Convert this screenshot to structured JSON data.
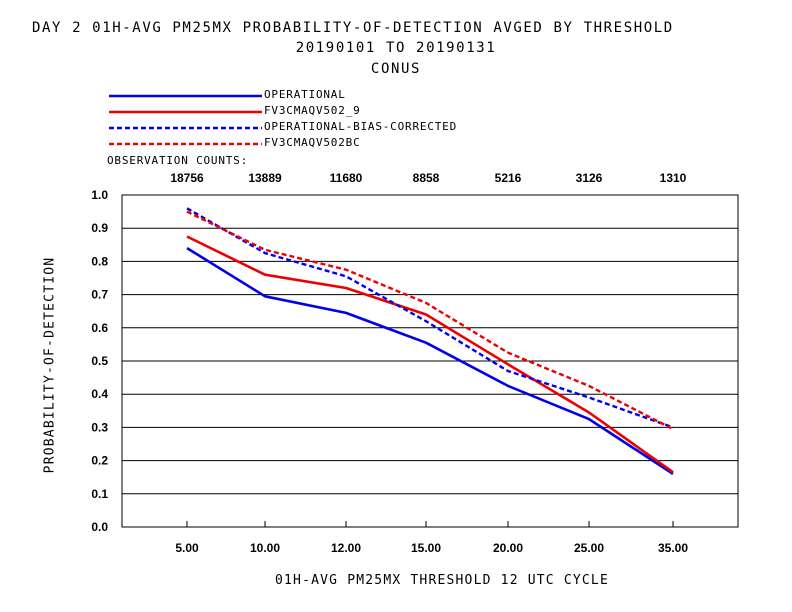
{
  "chart_data": {
    "type": "line",
    "title": "DAY 2   01H-AVG PM25MX PROBABILITY-OF-DETECTION   AVGED BY THRESHOLD",
    "subtitle": "20190101 TO 20190131",
    "region": "CONUS",
    "xlabel": "01H-AVG PM25MX THRESHOLD    12 UTC CYCLE",
    "ylabel": "PROBABILITY-OF-DETECTION",
    "categories": [
      "5.00",
      "10.00",
      "12.00",
      "15.00",
      "20.00",
      "25.00",
      "35.00"
    ],
    "observation_counts_label": "OBSERVATION COUNTS:",
    "observation_counts": [
      "18756",
      "13889",
      "11680",
      "8858",
      "5216",
      "3126",
      "1310"
    ],
    "ylim": [
      0.0,
      1.0
    ],
    "yticks": [
      "0.0",
      "0.1",
      "0.2",
      "0.3",
      "0.4",
      "0.5",
      "0.6",
      "0.7",
      "0.8",
      "0.9",
      "1.0"
    ],
    "grid": true,
    "legend_position": "top-left",
    "series": [
      {
        "name": "OPERATIONAL",
        "color": "#0000ee",
        "dash": "solid",
        "values": [
          0.84,
          0.695,
          0.645,
          0.555,
          0.425,
          0.325,
          0.16
        ]
      },
      {
        "name": "FV3CMAQV502_9",
        "color": "#ee0000",
        "dash": "solid",
        "values": [
          0.875,
          0.76,
          0.72,
          0.64,
          0.49,
          0.345,
          0.165
        ]
      },
      {
        "name": "OPERATIONAL-BIAS-CORRECTED",
        "color": "#0000ee",
        "dash": "dashed",
        "values": [
          0.96,
          0.825,
          0.755,
          0.62,
          0.47,
          0.39,
          0.3
        ]
      },
      {
        "name": "FV3CMAQV502BC",
        "color": "#ee0000",
        "dash": "dashed",
        "values": [
          0.95,
          0.835,
          0.775,
          0.675,
          0.525,
          0.425,
          0.295
        ]
      }
    ]
  }
}
